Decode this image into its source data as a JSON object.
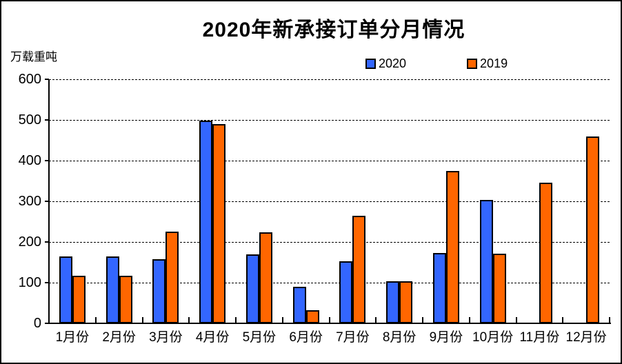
{
  "title": "2020年新承接订单分月情况",
  "y_axis_label": "万载重吨",
  "chart_data": {
    "type": "bar",
    "title": "2020年新承接订单分月情况",
    "xlabel": "",
    "ylabel": "万载重吨",
    "ylim": [
      0,
      600
    ],
    "yticks": [
      0,
      100,
      200,
      300,
      400,
      500,
      600
    ],
    "grid": "horizontal-dashed",
    "legend_position": "top-right",
    "categories": [
      "1月份",
      "2月份",
      "3月份",
      "4月份",
      "5月份",
      "6月份",
      "7月份",
      "8月份",
      "9月份",
      "10月份",
      "11月份",
      "12月份"
    ],
    "series": [
      {
        "name": "2020",
        "color": "#3366FF",
        "values": [
          165,
          165,
          157,
          498,
          170,
          89,
          152,
          103,
          173,
          304,
          null,
          null
        ]
      },
      {
        "name": "2019",
        "color": "#FF6600",
        "values": [
          117,
          117,
          226,
          490,
          224,
          32,
          264,
          103,
          374,
          171,
          345,
          460
        ]
      }
    ]
  },
  "colors": {
    "series_2020": "#3366FF",
    "series_2019": "#FF6600",
    "axis": "#000000",
    "background": "#ffffff"
  }
}
